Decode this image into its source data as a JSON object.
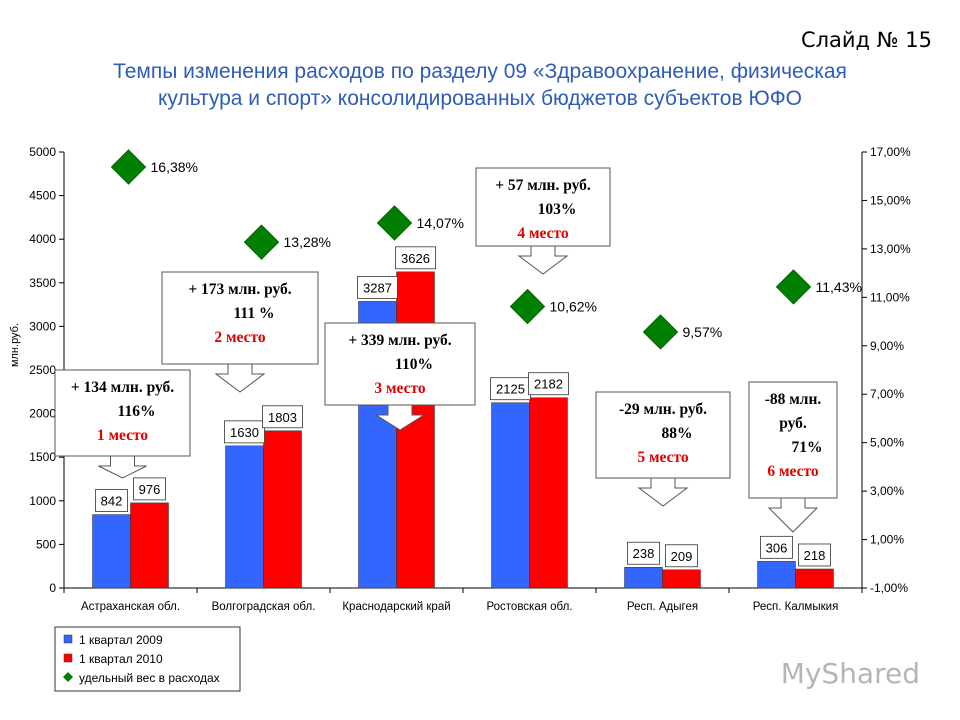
{
  "header": {
    "slide_number": "Слайд № 15",
    "title_line1": "Темпы изменения расходов по разделу 09 «Здравоохранение, физическая",
    "title_line2": "культура  и спорт» консолидированных бюджетов субъектов ЮФО"
  },
  "watermark": "MyShared",
  "colors": {
    "q2009": "#3366ff",
    "q2010": "#ff0000",
    "share": "#008000",
    "axis": "#000000"
  },
  "chart_data": {
    "type": "bar",
    "categories": [
      "Астраханская обл.",
      "Волгоградская обл.",
      "Краснодарский край",
      "Ростовская обл.",
      "Респ. Адыгея",
      "Респ. Калмыкия"
    ],
    "series": [
      {
        "name": "1 квартал 2009",
        "values": [
          842,
          1630,
          3287,
          2125,
          238,
          306
        ],
        "labels": [
          "842",
          "1630",
          "3287",
          "2125",
          "238",
          "306"
        ]
      },
      {
        "name": "1 квартал 2010",
        "values": [
          976,
          1803,
          3626,
          2182,
          209,
          218
        ],
        "labels": [
          "976",
          "1803",
          "3626",
          "2182",
          "209",
          "218"
        ]
      }
    ],
    "share_series": {
      "name": "удельный вес в расходах",
      "type": "scatter",
      "axis": "right",
      "values": [
        16.38,
        13.28,
        14.07,
        10.62,
        9.57,
        11.43
      ],
      "labels": [
        "16,38%",
        "13,28%",
        "14,07%",
        "10,62%",
        "9,57%",
        "11,43%"
      ]
    },
    "ylabel": "млн.руб.",
    "ylim": [
      0,
      5000
    ],
    "yticks": [
      "0",
      "500",
      "1000",
      "1500",
      "2000",
      "2500",
      "3000",
      "3500",
      "4000",
      "4500",
      "5000"
    ],
    "y2lim": [
      -1,
      17
    ],
    "y2ticks": [
      "-1,00%",
      "1,00%",
      "3,00%",
      "5,00%",
      "7,00%",
      "9,00%",
      "11,00%",
      "13,00%",
      "15,00%",
      "17,00%"
    ],
    "legend_position": "bottom-left",
    "annotations": [
      {
        "category": "Астраханская обл.",
        "lines": [
          "+ 134 млн. руб.",
          "116%",
          "1 место"
        ]
      },
      {
        "category": "Волгоградская обл.",
        "lines": [
          "+ 173 млн. руб.",
          "111 %",
          "2 место"
        ]
      },
      {
        "category": "Краснодарский край",
        "lines": [
          "+ 339 млн. руб.",
          "110%",
          "3 место"
        ]
      },
      {
        "category": "Ростовская обл.",
        "lines": [
          "+ 57 млн. руб.",
          "103%",
          "4 место"
        ]
      },
      {
        "category": "Респ. Адыгея",
        "lines": [
          "-29 млн. руб.",
          "88%",
          "5 место"
        ]
      },
      {
        "category": "Респ. Калмыкия",
        "lines": [
          "-88 млн.",
          "руб.",
          "71%",
          "6 место"
        ]
      }
    ]
  }
}
